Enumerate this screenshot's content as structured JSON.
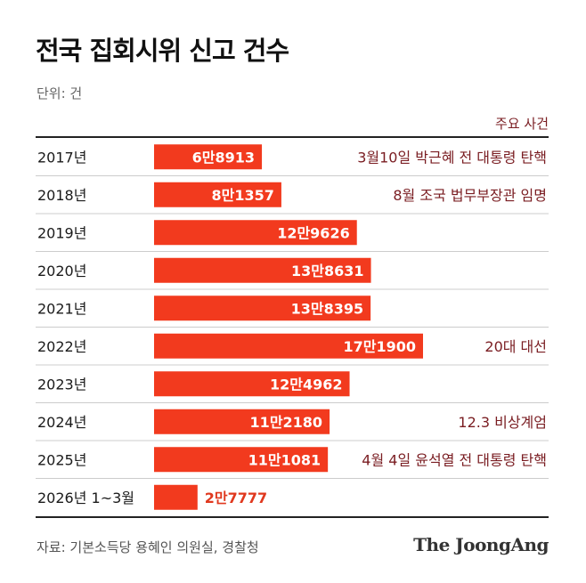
{
  "title": "전국 집회시위 신고 건수",
  "unit": "단위: 건",
  "events_header": "주요 사건",
  "source": "자료: 기본소득당 용혜인 의원실, 경찰청",
  "logo": "The JoongAng",
  "colors": {
    "bar": "#f23a1e",
    "bar_label": "#ffffff",
    "small_bar_label": "#e0381e",
    "event_text": "#7a1d22",
    "row_rule": "#cccccc"
  },
  "chart_data": {
    "type": "bar",
    "orientation": "horizontal",
    "title": "전국 집회시위 신고 건수",
    "unit": "단위: 건",
    "categories": [
      "2017년",
      "2018년",
      "2019년",
      "2020년",
      "2021년",
      "2022년",
      "2023년",
      "2024년",
      "2025년",
      "2026년 1~3월"
    ],
    "values": [
      68913,
      81357,
      129626,
      138631,
      138395,
      171900,
      124962,
      112180,
      111081,
      27777
    ],
    "value_labels": [
      "6만8913",
      "8만1357",
      "12만9626",
      "13만8631",
      "13만8395",
      "17만1900",
      "12만4962",
      "11만2180",
      "11만1081",
      "2만7777"
    ],
    "events": [
      "3월10일 박근혜 전 대통령 탄핵",
      "8월 조국 법무부장관 임명",
      "",
      "",
      "",
      "20대 대선",
      "",
      "12.3 비상계엄",
      "4월 4일 윤석열 전 대통령 탄핵",
      ""
    ],
    "xlim": [
      0,
      171900
    ]
  }
}
